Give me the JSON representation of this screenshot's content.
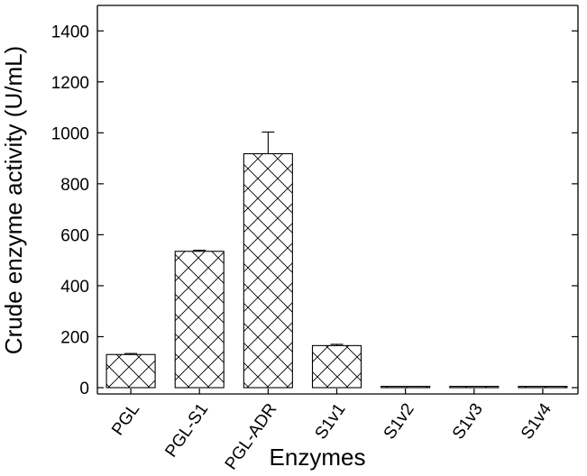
{
  "chart_data": {
    "type": "bar",
    "categories": [
      "PGL",
      "PGL-S1",
      "PGL-ADR",
      "S1v1",
      "S1v2",
      "S1v3",
      "S1v4"
    ],
    "values": [
      130,
      535,
      918,
      165,
      5,
      5,
      5
    ],
    "errors": [
      4,
      4,
      85,
      5,
      0,
      0,
      0
    ],
    "xlabel": "Enzymes",
    "ylabel": "Crude enzyme activity (U/mL)",
    "ylim": [
      0,
      1500
    ],
    "yticks": [
      0,
      200,
      400,
      600,
      800,
      1000,
      1200,
      1400
    ],
    "grid": false,
    "bar_pattern": "crosshatch",
    "bar_color": "#ffffff",
    "line_color": "#000000"
  }
}
